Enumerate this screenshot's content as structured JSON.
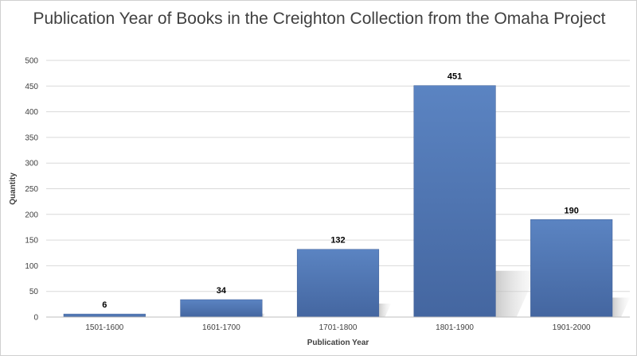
{
  "chart_data": {
    "type": "bar",
    "title": "Publication Year of Books in the Creighton Collection from the Omaha Project",
    "xlabel": "Publication Year",
    "ylabel": "Quantity",
    "categories": [
      "1501-1600",
      "1601-1700",
      "1701-1800",
      "1801-1900",
      "1901-2000"
    ],
    "values": [
      6,
      34,
      132,
      451,
      190
    ],
    "ylim": [
      0,
      500
    ],
    "yticks": [
      0,
      50,
      100,
      150,
      200,
      250,
      300,
      350,
      400,
      450,
      500
    ],
    "grid": true,
    "legend": "none",
    "colors": {
      "bar_top": "#5b84c2",
      "bar_bottom": "#4466a0",
      "grid": "#d9d9d9",
      "text": "#404040"
    }
  }
}
